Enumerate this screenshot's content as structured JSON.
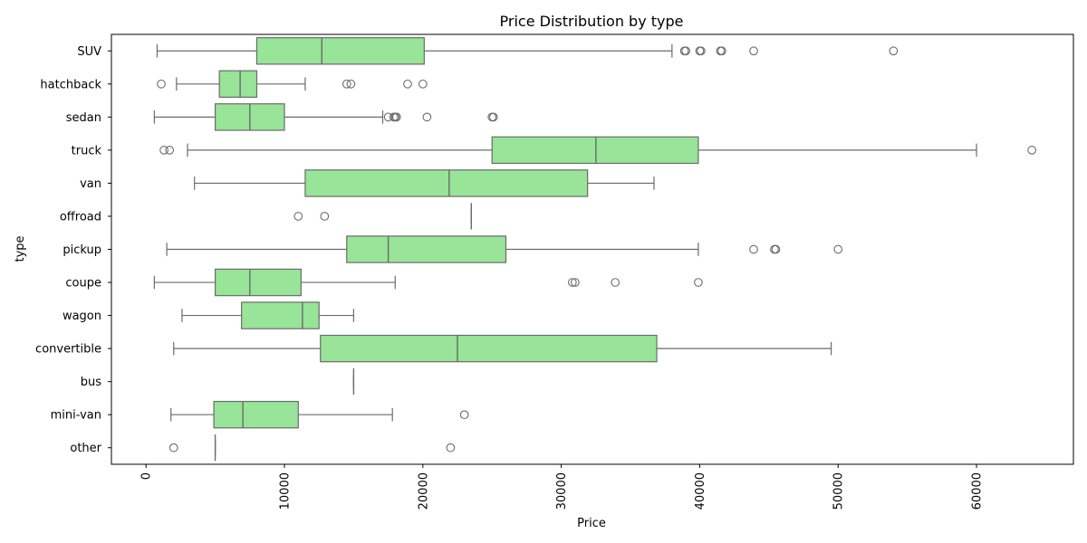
{
  "chart_data": {
    "type": "boxplot",
    "orientation": "horizontal",
    "title": "Price Distribution by type",
    "xlabel": "Price",
    "ylabel": "type",
    "xlim": [
      -2500,
      67000
    ],
    "xticks": [
      0,
      10000,
      20000,
      30000,
      40000,
      50000,
      60000
    ],
    "xtick_labels": [
      "0",
      "10000",
      "20000",
      "30000",
      "40000",
      "50000",
      "60000"
    ],
    "grid": false,
    "box_color": "#98e498",
    "line_color": "#6b6b6b",
    "categories": [
      "SUV",
      "hatchback",
      "sedan",
      "truck",
      "van",
      "offroad",
      "pickup",
      "coupe",
      "wagon",
      "convertible",
      "bus",
      "mini-van",
      "other"
    ],
    "boxes": [
      {
        "category": "SUV",
        "whisker_low": 800,
        "q1": 8000,
        "median": 12700,
        "q3": 20100,
        "whisker_high": 38000,
        "outliers": [
          38900,
          39000,
          40000,
          40100,
          41500,
          41600,
          43900,
          54000
        ]
      },
      {
        "category": "hatchback",
        "whisker_low": 2200,
        "q1": 5300,
        "median": 6800,
        "q3": 8000,
        "whisker_high": 11500,
        "outliers": [
          1100,
          14500,
          14800,
          18900,
          20000
        ]
      },
      {
        "category": "sedan",
        "whisker_low": 600,
        "q1": 5000,
        "median": 7500,
        "q3": 10000,
        "whisker_high": 17100,
        "outliers": [
          17500,
          17900,
          18000,
          18100,
          20300,
          25000,
          25100
        ]
      },
      {
        "category": "truck",
        "whisker_low": 3000,
        "q1": 25000,
        "median": 32500,
        "q3": 39900,
        "whisker_high": 60000,
        "outliers": [
          1300,
          1700,
          64000
        ]
      },
      {
        "category": "van",
        "whisker_low": 3500,
        "q1": 11500,
        "median": 21900,
        "q3": 31900,
        "whisker_high": 36700,
        "outliers": []
      },
      {
        "category": "offroad",
        "whisker_low": 23500,
        "q1": 23500,
        "median": 23500,
        "q3": 23500,
        "whisker_high": 23500,
        "outliers": [
          11000,
          12900
        ]
      },
      {
        "category": "pickup",
        "whisker_low": 1500,
        "q1": 14500,
        "median": 17500,
        "q3": 26000,
        "whisker_high": 39900,
        "outliers": [
          43900,
          45400,
          45500,
          50000
        ]
      },
      {
        "category": "coupe",
        "whisker_low": 600,
        "q1": 5000,
        "median": 7500,
        "q3": 11200,
        "whisker_high": 18000,
        "outliers": [
          30800,
          31000,
          33900,
          39900
        ]
      },
      {
        "category": "wagon",
        "whisker_low": 2600,
        "q1": 6900,
        "median": 11300,
        "q3": 12500,
        "whisker_high": 15000,
        "outliers": []
      },
      {
        "category": "convertible",
        "whisker_low": 2000,
        "q1": 12600,
        "median": 22500,
        "q3": 36900,
        "whisker_high": 49500,
        "outliers": []
      },
      {
        "category": "bus",
        "whisker_low": 15000,
        "q1": 15000,
        "median": 15000,
        "q3": 15000,
        "whisker_high": 15000,
        "outliers": []
      },
      {
        "category": "mini-van",
        "whisker_low": 1800,
        "q1": 4900,
        "median": 7000,
        "q3": 11000,
        "whisker_high": 17800,
        "outliers": [
          23000
        ]
      },
      {
        "category": "other",
        "whisker_low": 5000,
        "q1": 5000,
        "median": 5000,
        "q3": 5000,
        "whisker_high": 5000,
        "outliers": [
          2000,
          22000
        ]
      }
    ]
  }
}
